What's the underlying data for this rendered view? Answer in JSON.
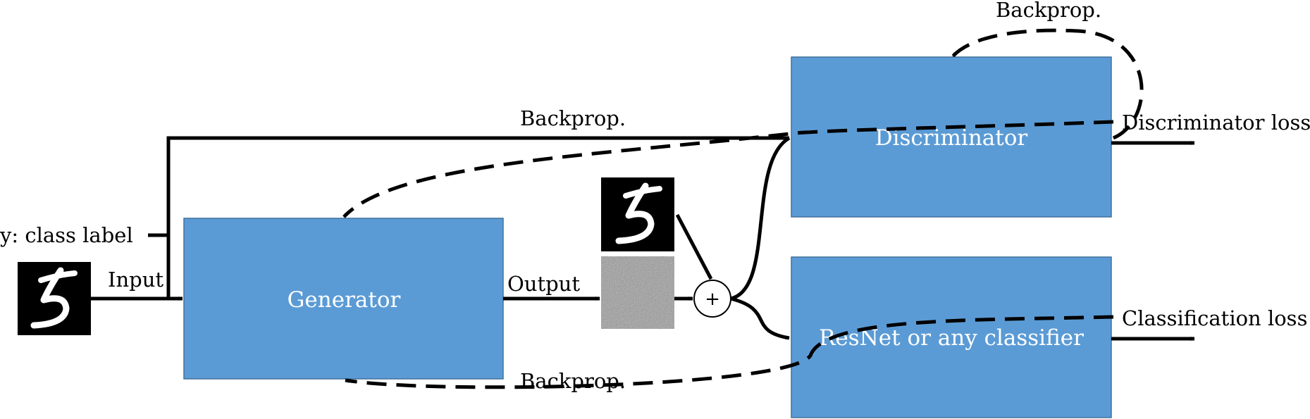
{
  "colors": {
    "box_fill": "#5b9bd5",
    "box_stroke": "#41719c",
    "arrow": "#000000",
    "image_bg": "#000000",
    "noise": "#8c8c8c"
  },
  "boxes": {
    "generator": "Generator",
    "discriminator": "Discriminator",
    "classifier": "ResNet or any classifier"
  },
  "labels": {
    "class_label": "y: class label",
    "input": "Input",
    "output": "Output",
    "backprop_top": "Backprop.",
    "backprop_disc": "Backprop.",
    "backprop_bottom": "Backprop.",
    "discriminator_loss": "Discriminator loss",
    "classification_loss": "Classification loss",
    "plus": "+"
  },
  "icons": {
    "input_digit": "digit-five-image",
    "target_digit": "digit-five-image",
    "noise": "noise-image"
  }
}
